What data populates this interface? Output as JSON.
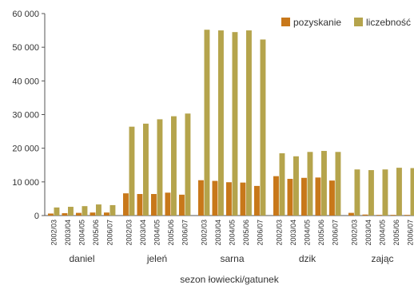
{
  "chart_data": {
    "type": "bar",
    "title": "",
    "xlabel": "sezon łowiecki/gatunek",
    "ylabel": "",
    "ylim": [
      0,
      60000
    ],
    "y_ticks": [
      "0",
      "10 000",
      "20 000",
      "30 000",
      "40 000",
      "50 000",
      "60 000"
    ],
    "y_tick_values": [
      0,
      10000,
      20000,
      30000,
      40000,
      50000,
      60000
    ],
    "legend_position": "top-right",
    "grid": false,
    "groups": [
      "daniel",
      "jeleń",
      "sarna",
      "dzik",
      "zając"
    ],
    "seasons": [
      "2002/03",
      "2003/04",
      "2004/05",
      "2005/06",
      "2006/07"
    ],
    "series": [
      {
        "name": "pozyskanie",
        "color": "#c8781a",
        "values": [
          [
            600,
            700,
            800,
            900,
            900
          ],
          [
            6600,
            6400,
            6400,
            6800,
            6200
          ],
          [
            10500,
            10300,
            9900,
            9800,
            8800
          ],
          [
            11700,
            10900,
            11200,
            11300,
            10400
          ],
          [
            800,
            300,
            200,
            200,
            200
          ]
        ]
      },
      {
        "name": "liczebność",
        "color": "#b5a44c",
        "values": [
          [
            2400,
            2600,
            2800,
            3300,
            3100
          ],
          [
            26400,
            27300,
            28600,
            29500,
            30300
          ],
          [
            55200,
            55000,
            54500,
            55000,
            52300
          ],
          [
            18500,
            17600,
            18900,
            19200,
            18900
          ],
          [
            13700,
            13500,
            13700,
            14200,
            14100
          ]
        ]
      }
    ]
  }
}
